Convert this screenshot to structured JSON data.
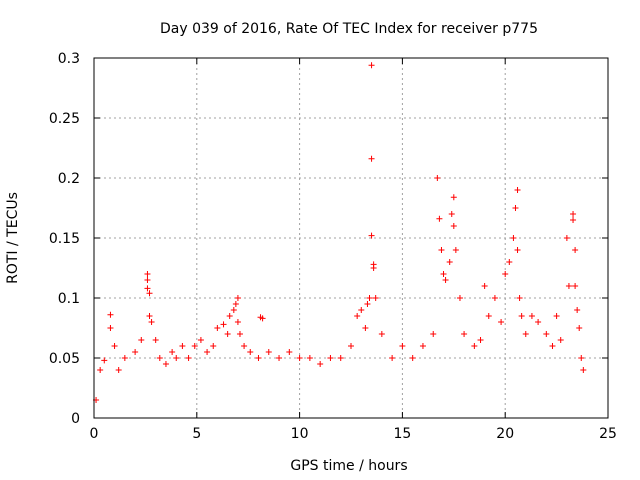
{
  "chart_data": {
    "type": "scatter",
    "title": "Day 039 of 2016, Rate Of TEC Index for receiver p775",
    "xlabel": "GPS time / hours",
    "ylabel": "ROTI / TECUs",
    "xlim": [
      0,
      25
    ],
    "ylim": [
      0,
      0.3
    ],
    "x_ticks": [
      0,
      5,
      10,
      15,
      20,
      25
    ],
    "x_tick_labels": [
      "0",
      "5",
      "10",
      "15",
      "20",
      "25"
    ],
    "y_ticks": [
      0,
      0.05,
      0.1,
      0.15,
      0.2,
      0.25,
      0.3
    ],
    "y_tick_labels": [
      "0",
      "0.05",
      "0.1",
      "0.15",
      "0.2",
      "0.25",
      "0.3"
    ],
    "grid": true,
    "marker": "+",
    "color": "#ff0000",
    "series": [
      {
        "name": "ROTI",
        "x": [
          0.1,
          0.3,
          0.5,
          0.8,
          0.8,
          1.0,
          1.2,
          1.5,
          2.0,
          2.3,
          2.6,
          2.6,
          2.6,
          2.7,
          2.7,
          2.8,
          3.0,
          3.2,
          3.5,
          3.8,
          4.0,
          4.3,
          4.6,
          4.9,
          5.2,
          5.5,
          5.8,
          6.0,
          6.3,
          6.5,
          6.6,
          6.8,
          6.9,
          7.0,
          7.0,
          7.1,
          7.3,
          7.6,
          8.0,
          8.1,
          8.2,
          8.5,
          9.0,
          9.5,
          10.0,
          10.5,
          11.0,
          11.5,
          12.0,
          12.5,
          12.8,
          13.0,
          13.2,
          13.3,
          13.4,
          13.5,
          13.5,
          13.5,
          13.6,
          13.6,
          13.7,
          14.0,
          14.5,
          15.0,
          15.5,
          16.0,
          16.5,
          16.7,
          16.8,
          16.9,
          17.0,
          17.1,
          17.3,
          17.4,
          17.5,
          17.5,
          17.6,
          17.8,
          18.0,
          18.5,
          18.8,
          19.0,
          19.2,
          19.5,
          19.8,
          20.0,
          20.2,
          20.4,
          20.5,
          20.6,
          20.6,
          20.7,
          20.8,
          21.0,
          21.3,
          21.6,
          22.0,
          22.3,
          22.5,
          22.7,
          23.0,
          23.1,
          23.3,
          23.3,
          23.4,
          23.4,
          23.5,
          23.6,
          23.7,
          23.8
        ],
        "y": [
          0.015,
          0.04,
          0.048,
          0.086,
          0.075,
          0.06,
          0.04,
          0.05,
          0.055,
          0.065,
          0.12,
          0.115,
          0.108,
          0.104,
          0.085,
          0.08,
          0.065,
          0.05,
          0.045,
          0.055,
          0.05,
          0.06,
          0.05,
          0.06,
          0.065,
          0.055,
          0.06,
          0.075,
          0.078,
          0.07,
          0.085,
          0.09,
          0.095,
          0.1,
          0.08,
          0.07,
          0.06,
          0.055,
          0.05,
          0.084,
          0.083,
          0.055,
          0.05,
          0.055,
          0.05,
          0.05,
          0.045,
          0.05,
          0.05,
          0.06,
          0.085,
          0.09,
          0.075,
          0.095,
          0.1,
          0.294,
          0.216,
          0.152,
          0.128,
          0.125,
          0.1,
          0.07,
          0.05,
          0.06,
          0.05,
          0.06,
          0.07,
          0.2,
          0.166,
          0.14,
          0.12,
          0.115,
          0.13,
          0.17,
          0.184,
          0.16,
          0.14,
          0.1,
          0.07,
          0.06,
          0.065,
          0.11,
          0.085,
          0.1,
          0.08,
          0.12,
          0.13,
          0.15,
          0.175,
          0.19,
          0.14,
          0.1,
          0.085,
          0.07,
          0.085,
          0.08,
          0.07,
          0.06,
          0.085,
          0.065,
          0.15,
          0.11,
          0.17,
          0.165,
          0.14,
          0.11,
          0.09,
          0.075,
          0.05,
          0.04
        ]
      }
    ]
  }
}
